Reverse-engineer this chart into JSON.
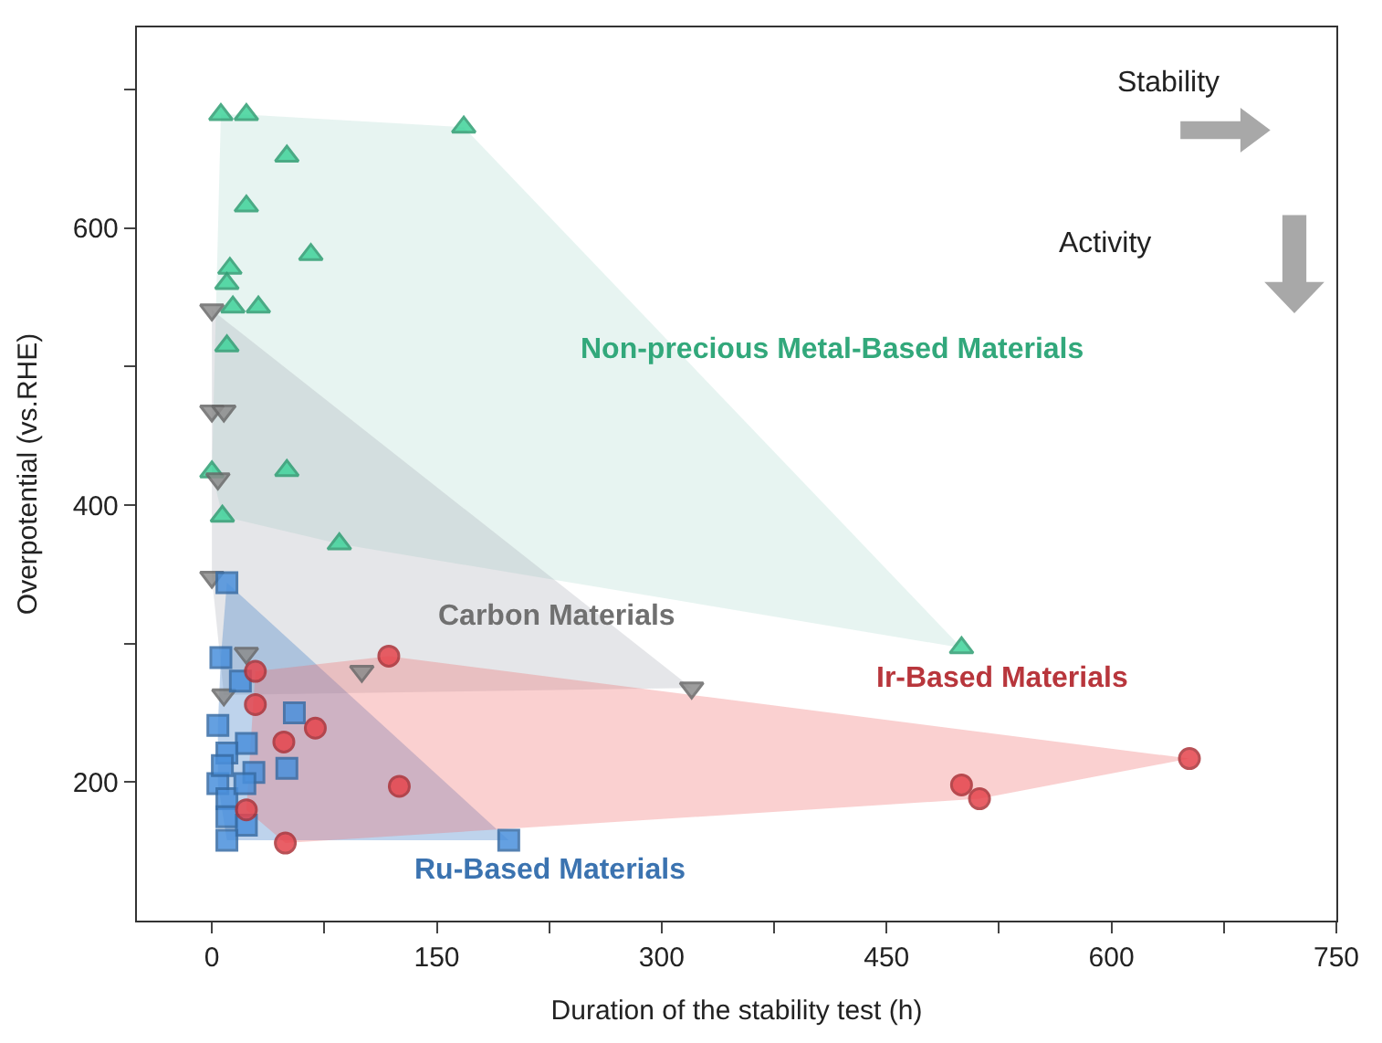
{
  "chart_data": {
    "type": "scatter",
    "xlabel": "Duration of the stability test (h)",
    "ylabel": "Overpotential (vs.RHE)",
    "xlim": [
      -50,
      750
    ],
    "ylim": [
      100,
      745
    ],
    "xticks": [
      0,
      {
        "value": 75,
        "label": null
      },
      150,
      {
        "value": 225,
        "label": null
      },
      300,
      {
        "value": 375,
        "label": null
      },
      450,
      {
        "value": 525,
        "label": null
      },
      600,
      {
        "value": 675,
        "label": null
      },
      750
    ],
    "yticks": [
      200,
      {
        "value": 300,
        "label": null
      },
      400,
      {
        "value": 500,
        "label": null
      },
      600,
      {
        "value": 700,
        "label": null
      }
    ],
    "grid": false,
    "legend": false,
    "series": [
      {
        "name": "Non-precious Metal-Based Materials",
        "color": "#3fd39a",
        "marker": "triangle",
        "x": [
          6,
          23,
          168,
          50,
          23,
          66,
          12,
          10,
          14,
          31,
          10,
          50,
          0,
          7,
          85,
          500
        ],
        "values": [
          682,
          682,
          673,
          652,
          616,
          581,
          571,
          560,
          543,
          543,
          515,
          425,
          424,
          392,
          372,
          297
        ]
      },
      {
        "name": "Carbon Materials",
        "color": "#8c8c8c",
        "marker": "triangle-down",
        "x": [
          0,
          0,
          8,
          4,
          0,
          23,
          8,
          100,
          320
        ],
        "values": [
          541,
          468,
          468,
          419,
          348,
          293,
          263,
          280,
          268
        ]
      },
      {
        "name": "Ru-Based Materials",
        "color": "#4a90dc",
        "marker": "square",
        "x": [
          10,
          6,
          19,
          4,
          23,
          10,
          55,
          28,
          50,
          4,
          10,
          22,
          7,
          10,
          23,
          10,
          198
        ],
        "values": [
          344,
          290,
          273,
          241,
          228,
          221,
          250,
          207,
          210,
          199,
          188,
          199,
          212,
          175,
          169,
          158,
          158
        ]
      },
      {
        "name": "Ir-Based Materials",
        "color": "#e6444c",
        "marker": "circle",
        "x": [
          118,
          29,
          29,
          69,
          48,
          125,
          23,
          49,
          500,
          512,
          652
        ],
        "values": [
          291,
          280,
          256,
          239,
          229,
          197,
          180,
          156,
          198,
          188,
          217
        ]
      }
    ],
    "annotations": [
      "Stability",
      "Activity"
    ]
  }
}
